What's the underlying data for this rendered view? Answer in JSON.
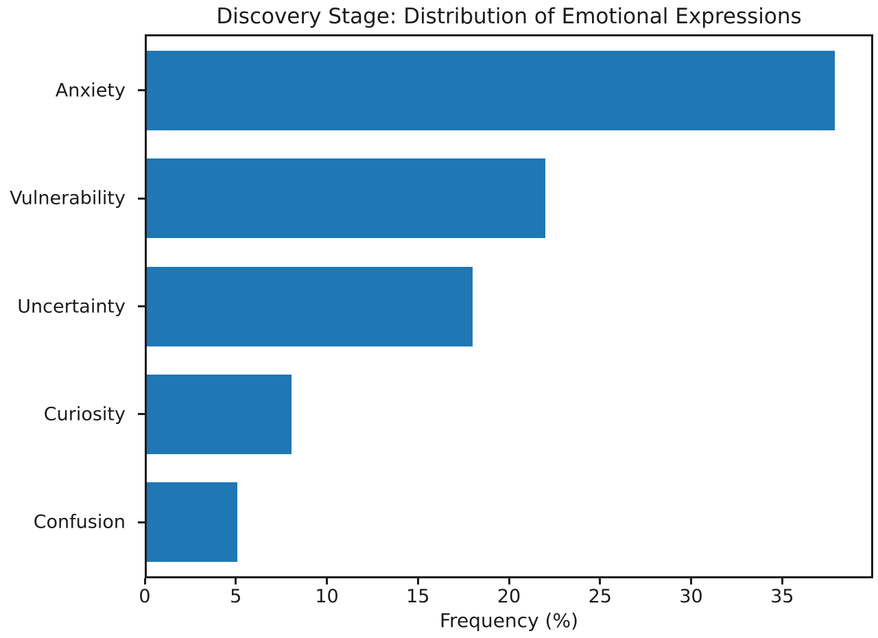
{
  "chart_data": {
    "type": "bar",
    "orientation": "horizontal",
    "title": "Discovery Stage: Distribution of Emotional Expressions",
    "categories": [
      "Anxiety",
      "Vulnerability",
      "Uncertainty",
      "Curiosity",
      "Confusion"
    ],
    "values": [
      38,
      22,
      18,
      8,
      5
    ],
    "xlabel": "Frequency (%)",
    "ylabel": "",
    "xlim": [
      0,
      40
    ],
    "xticks": [
      0,
      5,
      10,
      15,
      20,
      25,
      30,
      35
    ],
    "grid": false,
    "legend": null,
    "bar_color": "#1f77b4",
    "text_color": "#1c1c1c",
    "background_color": "#ffffff"
  }
}
